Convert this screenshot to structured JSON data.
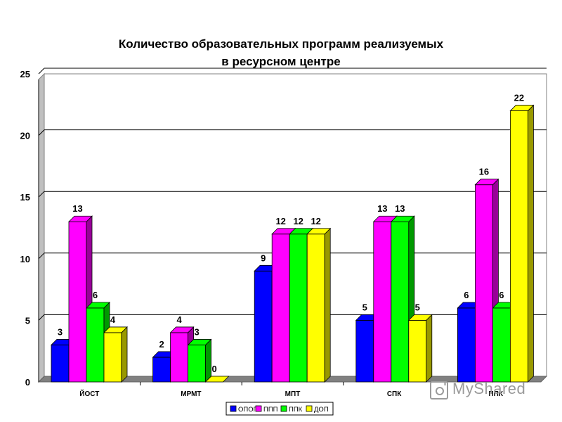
{
  "chart_data": {
    "type": "bar",
    "title_line1": "Количество образовательных программ реализуемых",
    "title_line2": "в ресурсном центре",
    "categories": [
      "ЙОСТ",
      "МРМТ",
      "МПТ",
      "СПК",
      "ППК"
    ],
    "series": [
      {
        "name": "ОПОП",
        "color": "#0000ff",
        "side": "#00008b",
        "values": [
          3,
          2,
          9,
          5,
          6
        ]
      },
      {
        "name": "ППП",
        "color": "#ff00ff",
        "side": "#990099",
        "values": [
          13,
          4,
          12,
          13,
          16
        ]
      },
      {
        "name": "ППК",
        "color": "#00ff00",
        "side": "#009900",
        "values": [
          6,
          3,
          12,
          13,
          6
        ]
      },
      {
        "name": "ДОП",
        "color": "#ffff00",
        "side": "#999900",
        "values": [
          4,
          0,
          12,
          5,
          22
        ]
      }
    ],
    "ylim": [
      0,
      25
    ],
    "yticks": [
      0,
      5,
      10,
      15,
      20,
      25
    ],
    "grid": true,
    "legend": "bottom"
  },
  "watermark": {
    "text": "MyShared"
  }
}
